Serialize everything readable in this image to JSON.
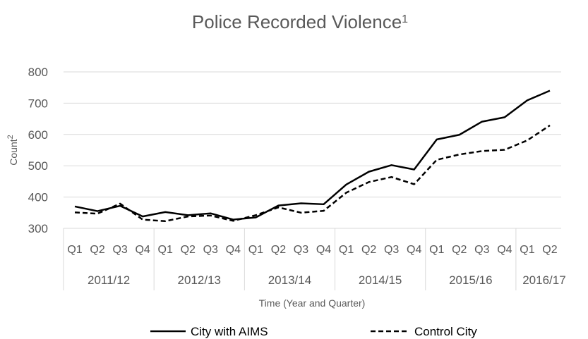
{
  "chart_data": {
    "type": "line",
    "title": "Police Recorded Violence",
    "title_superscript": "1",
    "xlabel": "Time (Year and Quarter)",
    "ylabel": "Count",
    "ylabel_superscript": "2",
    "ylim": [
      300,
      800
    ],
    "yticks": [
      300,
      400,
      500,
      600,
      700,
      800
    ],
    "grid": "horizontal",
    "legend_position": "bottom",
    "categories": [
      "Q1",
      "Q2",
      "Q3",
      "Q4",
      "Q1",
      "Q2",
      "Q3",
      "Q4",
      "Q1",
      "Q2",
      "Q3",
      "Q4",
      "Q1",
      "Q2",
      "Q3",
      "Q4",
      "Q1",
      "Q2",
      "Q3",
      "Q4",
      "Q1",
      "Q2"
    ],
    "groups": [
      {
        "label": "2011/12",
        "count": 4
      },
      {
        "label": "2012/13",
        "count": 4
      },
      {
        "label": "2013/14",
        "count": 4
      },
      {
        "label": "2014/15",
        "count": 4
      },
      {
        "label": "2015/16",
        "count": 4
      },
      {
        "label": "2016/17",
        "count": 2
      }
    ],
    "series": [
      {
        "name": "City with AIMS",
        "style": "solid",
        "color": "#000000",
        "values": [
          370,
          355,
          372,
          338,
          352,
          342,
          348,
          328,
          335,
          373,
          380,
          377,
          440,
          481,
          502,
          488,
          584,
          599,
          641,
          655,
          709,
          740
        ]
      },
      {
        "name": "Control City",
        "style": "dashed",
        "color": "#000000",
        "values": [
          351,
          347,
          379,
          328,
          323,
          338,
          341,
          324,
          342,
          367,
          350,
          356,
          414,
          448,
          464,
          441,
          519,
          536,
          547,
          551,
          581,
          629
        ]
      }
    ]
  }
}
